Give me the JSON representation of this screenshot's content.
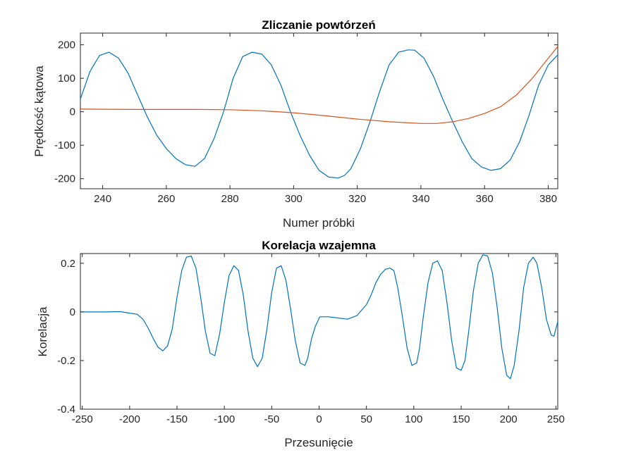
{
  "chart_data": [
    {
      "type": "line",
      "title": "Zliczanie powtórzeń",
      "xlabel": "Numer próbki",
      "ylabel": "Prędkość kątowa",
      "xlim": [
        233,
        383
      ],
      "ylim": [
        -230,
        235
      ],
      "x_ticks": [
        240,
        260,
        280,
        300,
        320,
        340,
        360,
        380
      ],
      "y_ticks": [
        -200,
        -100,
        0,
        100,
        200
      ],
      "grid": false,
      "series": [
        {
          "color": "#0072BD",
          "x": [
            233,
            236,
            239,
            242,
            245,
            248,
            251,
            254,
            257,
            260,
            263,
            266,
            269,
            272,
            275,
            278,
            281,
            284,
            287,
            290,
            293,
            296,
            299,
            302,
            305,
            308,
            311,
            314,
            316,
            318,
            321,
            324,
            327,
            330,
            333,
            336,
            338,
            341,
            344,
            347,
            350,
            353,
            356,
            359,
            362,
            365,
            368,
            371,
            374,
            377,
            380,
            383
          ],
          "y": [
            38,
            120,
            168,
            178,
            160,
            115,
            50,
            -15,
            -70,
            -110,
            -140,
            -158,
            -163,
            -140,
            -80,
            0,
            100,
            165,
            178,
            172,
            140,
            80,
            0,
            -70,
            -130,
            -175,
            -195,
            -198,
            -190,
            -170,
            -110,
            -30,
            60,
            140,
            178,
            185,
            184,
            160,
            105,
            35,
            -30,
            -90,
            -140,
            -165,
            -175,
            -170,
            -145,
            -90,
            -10,
            80,
            140,
            170
          ]
        },
        {
          "color": "#D95319",
          "x": [
            233,
            250,
            260,
            270,
            280,
            290,
            300,
            310,
            320,
            330,
            340,
            345,
            350,
            355,
            360,
            365,
            370,
            375,
            380,
            383
          ],
          "y": [
            8,
            7,
            7,
            7,
            6,
            3,
            -3,
            -12,
            -22,
            -30,
            -35,
            -35,
            -30,
            -20,
            -5,
            15,
            50,
            100,
            160,
            195
          ]
        }
      ]
    },
    {
      "type": "line",
      "title": "Korelacja wzajemna",
      "xlabel": "Przesunięcie",
      "ylabel": "Korelacja",
      "xlim": [
        -252,
        252
      ],
      "ylim": [
        -0.4,
        0.24
      ],
      "x_ticks": [
        -250,
        -200,
        -150,
        -100,
        -50,
        0,
        50,
        100,
        150,
        200,
        250
      ],
      "y_ticks": [
        -0.4,
        -0.2,
        0,
        0.2
      ],
      "y_tick_labels": [
        "-0.4",
        "-0.2",
        "0",
        "0.2"
      ],
      "grid": false,
      "series": [
        {
          "color": "#0072BD",
          "x": [
            -252,
            -240,
            -225,
            -210,
            -200,
            -192,
            -186,
            -180,
            -175,
            -170,
            -165,
            -160,
            -155,
            -150,
            -145,
            -140,
            -135,
            -130,
            -125,
            -120,
            -115,
            -110,
            -105,
            -100,
            -95,
            -90,
            -85,
            -80,
            -75,
            -70,
            -65,
            -60,
            -55,
            -50,
            -45,
            -40,
            -35,
            -30,
            -25,
            -20,
            -15,
            -12,
            -8,
            -4,
            -1,
            0,
            1,
            10,
            20,
            30,
            40,
            50,
            55,
            60,
            65,
            70,
            75,
            79,
            83,
            88,
            93,
            98,
            103,
            106,
            110,
            115,
            120,
            125,
            130,
            135,
            140,
            145,
            150,
            154,
            158,
            163,
            168,
            173,
            178,
            183,
            188,
            193,
            198,
            202,
            206,
            211,
            216,
            221,
            226,
            230,
            235,
            240,
            245,
            248,
            252
          ],
          "y": [
            0,
            0,
            0,
            0.001,
            -0.005,
            -0.01,
            -0.03,
            -0.07,
            -0.11,
            -0.145,
            -0.16,
            -0.14,
            -0.07,
            0.06,
            0.17,
            0.225,
            0.23,
            0.18,
            0.06,
            -0.08,
            -0.17,
            -0.18,
            -0.09,
            0.04,
            0.15,
            0.19,
            0.17,
            0.07,
            -0.08,
            -0.19,
            -0.225,
            -0.19,
            -0.07,
            0.08,
            0.18,
            0.19,
            0.13,
            0.01,
            -0.12,
            -0.21,
            -0.22,
            -0.19,
            -0.11,
            -0.06,
            -0.035,
            -0.025,
            -0.02,
            -0.02,
            -0.025,
            -0.03,
            -0.015,
            0.03,
            0.07,
            0.12,
            0.155,
            0.175,
            0.18,
            0.17,
            0.1,
            -0.02,
            -0.15,
            -0.22,
            -0.21,
            -0.15,
            -0.02,
            0.12,
            0.2,
            0.21,
            0.17,
            0.04,
            -0.12,
            -0.23,
            -0.24,
            -0.2,
            -0.08,
            0.09,
            0.2,
            0.235,
            0.23,
            0.16,
            0.02,
            -0.15,
            -0.26,
            -0.275,
            -0.22,
            -0.08,
            0.1,
            0.2,
            0.225,
            0.2,
            0.1,
            -0.03,
            -0.095,
            -0.1,
            -0.04
          ]
        }
      ]
    }
  ]
}
